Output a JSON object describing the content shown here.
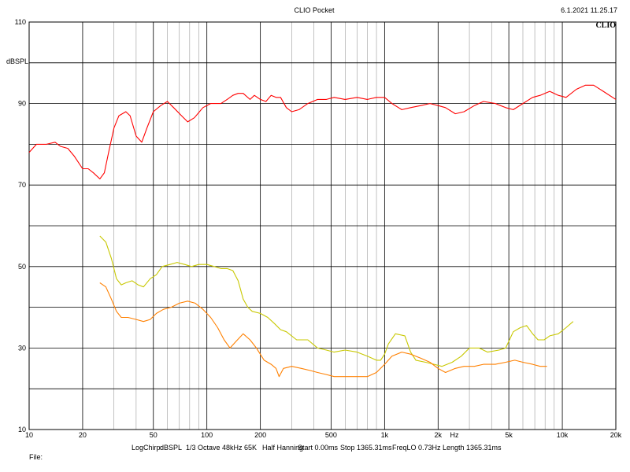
{
  "header": {
    "title": "CLIO Pocket",
    "datetime": "6.1.2021 11.25.17",
    "brand": "CLIO"
  },
  "footer": {
    "params": [
      "LogChirp:",
      "dBSPL",
      "1/3 Octave",
      "48kHz",
      "65K",
      "Half Hanning",
      "Start 0.00ms",
      "Stop 1365.31ms",
      "FreqLO 0.73Hz",
      "Length 1365.31ms"
    ],
    "file_label": "File:"
  },
  "chart_data": {
    "type": "line",
    "title": "",
    "xlabel": "Hz",
    "ylabel": "dBSPL",
    "xscale": "log",
    "xlim": [
      10,
      20000
    ],
    "ylim": [
      10,
      110
    ],
    "grid": true,
    "x_ticks": [
      {
        "v": 10,
        "t": "10"
      },
      {
        "v": 20,
        "t": "20"
      },
      {
        "v": 50,
        "t": "50"
      },
      {
        "v": 100,
        "t": "100"
      },
      {
        "v": 200,
        "t": "200"
      },
      {
        "v": 500,
        "t": "500"
      },
      {
        "v": 1000,
        "t": "1k"
      },
      {
        "v": 2000,
        "t": "2k"
      },
      {
        "v": 5000,
        "t": "5k"
      },
      {
        "v": 10000,
        "t": "10k"
      },
      {
        "v": 20000,
        "t": "20k"
      }
    ],
    "y_ticks": [
      {
        "v": 110,
        "t": "110"
      },
      {
        "v": 90,
        "t": "90"
      },
      {
        "v": 70,
        "t": "70"
      },
      {
        "v": 50,
        "t": "50"
      },
      {
        "v": 30,
        "t": "30"
      },
      {
        "v": 10,
        "t": "10"
      }
    ],
    "series": [
      {
        "color": "#ff0000",
        "points": [
          [
            10,
            78
          ],
          [
            11,
            80
          ],
          [
            12.5,
            80
          ],
          [
            14,
            80.5
          ],
          [
            15,
            79.5
          ],
          [
            16.5,
            79
          ],
          [
            18,
            77
          ],
          [
            20,
            74
          ],
          [
            21.5,
            74
          ],
          [
            23,
            73
          ],
          [
            25,
            71.5
          ],
          [
            26.5,
            73
          ],
          [
            28,
            78
          ],
          [
            30,
            84
          ],
          [
            32,
            87
          ],
          [
            35,
            88
          ],
          [
            37,
            87
          ],
          [
            40,
            82
          ],
          [
            43,
            80.5
          ],
          [
            46,
            84
          ],
          [
            50,
            88
          ],
          [
            55,
            89.5
          ],
          [
            60,
            90.5
          ],
          [
            65,
            89
          ],
          [
            72,
            87
          ],
          [
            78,
            85.5
          ],
          [
            85,
            86.5
          ],
          [
            95,
            89
          ],
          [
            105,
            90
          ],
          [
            120,
            90
          ],
          [
            130,
            91
          ],
          [
            140,
            92
          ],
          [
            150,
            92.5
          ],
          [
            160,
            92.5
          ],
          [
            175,
            91
          ],
          [
            185,
            92
          ],
          [
            200,
            91
          ],
          [
            215,
            90.5
          ],
          [
            230,
            92
          ],
          [
            245,
            91.5
          ],
          [
            260,
            91.5
          ],
          [
            280,
            89
          ],
          [
            300,
            88
          ],
          [
            330,
            88.5
          ],
          [
            370,
            90
          ],
          [
            420,
            91
          ],
          [
            470,
            91
          ],
          [
            520,
            91.5
          ],
          [
            600,
            91
          ],
          [
            700,
            91.5
          ],
          [
            800,
            91
          ],
          [
            900,
            91.5
          ],
          [
            1000,
            91.5
          ],
          [
            1100,
            90
          ],
          [
            1250,
            88.5
          ],
          [
            1400,
            89
          ],
          [
            1600,
            89.5
          ],
          [
            1800,
            90
          ],
          [
            2000,
            89.5
          ],
          [
            2200,
            89
          ],
          [
            2500,
            87.5
          ],
          [
            2800,
            88
          ],
          [
            3200,
            89.5
          ],
          [
            3600,
            90.5
          ],
          [
            4200,
            90
          ],
          [
            4800,
            89
          ],
          [
            5300,
            88.5
          ],
          [
            6000,
            90
          ],
          [
            6800,
            91.5
          ],
          [
            7500,
            92
          ],
          [
            8500,
            93
          ],
          [
            9500,
            92
          ],
          [
            10500,
            91.5
          ],
          [
            12000,
            93.5
          ],
          [
            13500,
            94.5
          ],
          [
            15000,
            94.5
          ],
          [
            17000,
            93
          ],
          [
            20000,
            91
          ]
        ]
      },
      {
        "color": "#c8c800",
        "points": [
          [
            25,
            57.5
          ],
          [
            27,
            56
          ],
          [
            29,
            52
          ],
          [
            31,
            47
          ],
          [
            33,
            45.5
          ],
          [
            35,
            46
          ],
          [
            38,
            46.5
          ],
          [
            41,
            45.5
          ],
          [
            44,
            45
          ],
          [
            48,
            47
          ],
          [
            52,
            48
          ],
          [
            56,
            50
          ],
          [
            62,
            50.5
          ],
          [
            68,
            51
          ],
          [
            75,
            50.5
          ],
          [
            82,
            50
          ],
          [
            90,
            50.5
          ],
          [
            100,
            50.5
          ],
          [
            110,
            50
          ],
          [
            120,
            49.5
          ],
          [
            130,
            49.5
          ],
          [
            140,
            49
          ],
          [
            150,
            46.5
          ],
          [
            160,
            42
          ],
          [
            170,
            40
          ],
          [
            180,
            39
          ],
          [
            200,
            38.5
          ],
          [
            220,
            37.5
          ],
          [
            240,
            36
          ],
          [
            260,
            34.5
          ],
          [
            280,
            34
          ],
          [
            320,
            32
          ],
          [
            370,
            32
          ],
          [
            420,
            30
          ],
          [
            470,
            29.5
          ],
          [
            520,
            29
          ],
          [
            600,
            29.5
          ],
          [
            700,
            29
          ],
          [
            800,
            28
          ],
          [
            900,
            27
          ],
          [
            950,
            27
          ],
          [
            1000,
            28.5
          ],
          [
            1050,
            31
          ],
          [
            1150,
            33.5
          ],
          [
            1300,
            33
          ],
          [
            1400,
            29
          ],
          [
            1500,
            27
          ],
          [
            1700,
            26.5
          ],
          [
            1900,
            26
          ],
          [
            2100,
            25.5
          ],
          [
            2400,
            26.5
          ],
          [
            2700,
            28
          ],
          [
            3000,
            30
          ],
          [
            3400,
            30
          ],
          [
            3800,
            29
          ],
          [
            4400,
            29.5
          ],
          [
            4800,
            30
          ],
          [
            5300,
            34
          ],
          [
            5800,
            35
          ],
          [
            6300,
            35.5
          ],
          [
            6800,
            33.5
          ],
          [
            7300,
            32
          ],
          [
            7900,
            32
          ],
          [
            8500,
            33
          ],
          [
            9500,
            33.5
          ],
          [
            10500,
            35
          ],
          [
            11500,
            36.5
          ]
        ]
      },
      {
        "color": "#ff8000",
        "points": [
          [
            25,
            46
          ],
          [
            27,
            45
          ],
          [
            29,
            42
          ],
          [
            31,
            39
          ],
          [
            33,
            37.5
          ],
          [
            36,
            37.5
          ],
          [
            40,
            37
          ],
          [
            44,
            36.5
          ],
          [
            48,
            37
          ],
          [
            52,
            38.5
          ],
          [
            57,
            39.5
          ],
          [
            63,
            40
          ],
          [
            70,
            41
          ],
          [
            78,
            41.5
          ],
          [
            86,
            41
          ],
          [
            95,
            39.5
          ],
          [
            105,
            37.5
          ],
          [
            115,
            35
          ],
          [
            125,
            32
          ],
          [
            135,
            30
          ],
          [
            145,
            31.5
          ],
          [
            160,
            33.5
          ],
          [
            175,
            32
          ],
          [
            190,
            30
          ],
          [
            210,
            27
          ],
          [
            230,
            26
          ],
          [
            245,
            25
          ],
          [
            255,
            23
          ],
          [
            270,
            25
          ],
          [
            300,
            25.5
          ],
          [
            340,
            25
          ],
          [
            380,
            24.5
          ],
          [
            420,
            24
          ],
          [
            470,
            23.5
          ],
          [
            520,
            23
          ],
          [
            600,
            23
          ],
          [
            700,
            23
          ],
          [
            800,
            23
          ],
          [
            900,
            24
          ],
          [
            1000,
            26
          ],
          [
            1100,
            28
          ],
          [
            1250,
            29
          ],
          [
            1400,
            28.5
          ],
          [
            1600,
            27.5
          ],
          [
            1800,
            26.5
          ],
          [
            2000,
            25
          ],
          [
            2200,
            24
          ],
          [
            2500,
            25
          ],
          [
            2800,
            25.5
          ],
          [
            3200,
            25.5
          ],
          [
            3600,
            26
          ],
          [
            4200,
            26
          ],
          [
            4800,
            26.5
          ],
          [
            5400,
            27
          ],
          [
            6000,
            26.5
          ],
          [
            6800,
            26
          ],
          [
            7500,
            25.5
          ],
          [
            8200,
            25.5
          ]
        ]
      }
    ]
  }
}
